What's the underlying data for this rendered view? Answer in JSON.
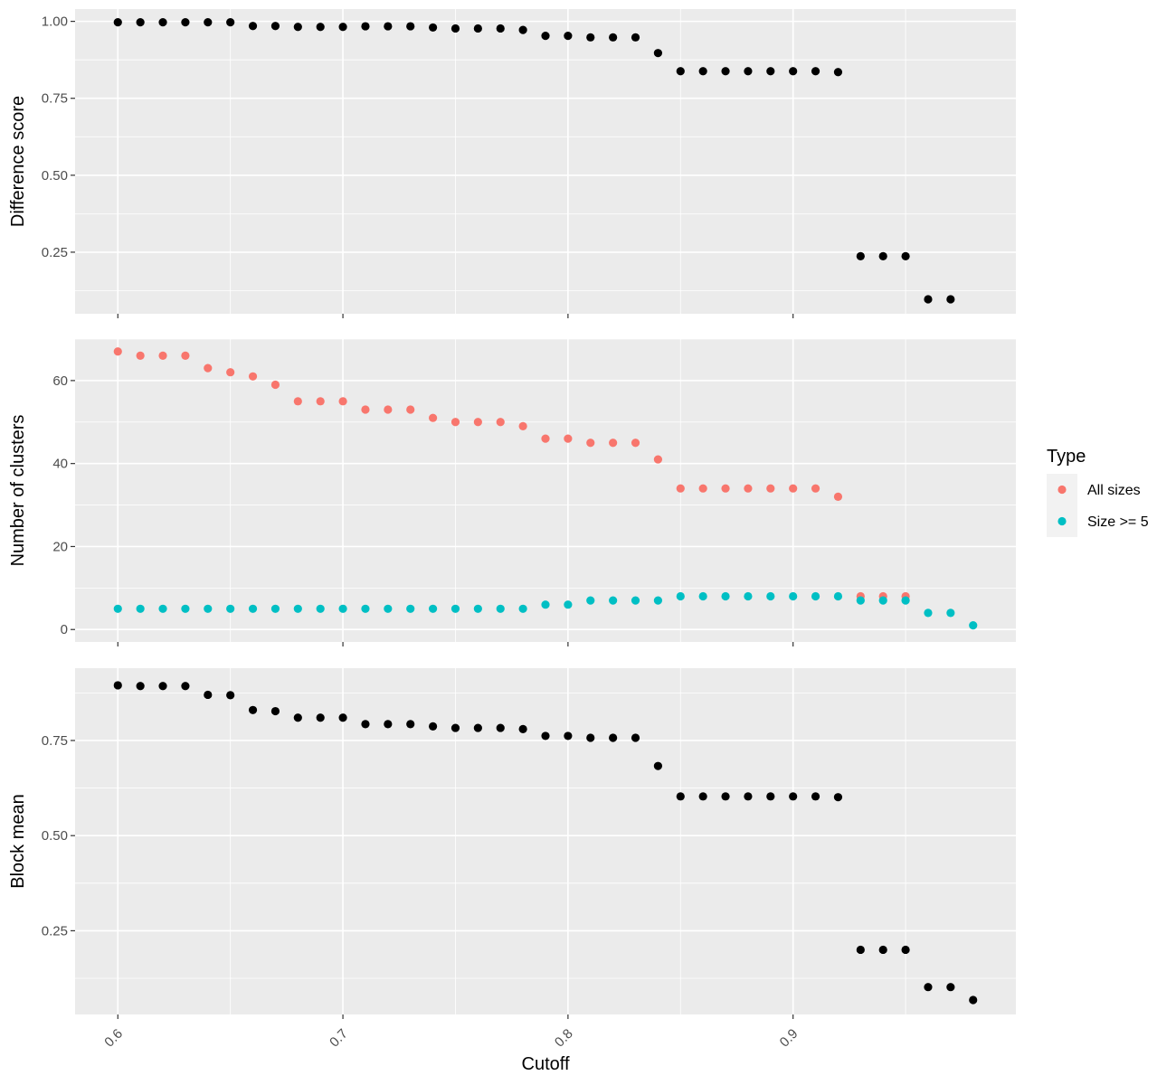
{
  "chart_data": {
    "type": "scatter",
    "xlabel": "Cutoff",
    "x_ticks": [
      0.6,
      0.7,
      0.8,
      0.9
    ],
    "x_tick_labels": [
      "0.6",
      "0.7",
      "0.8",
      "0.9"
    ],
    "xlim": [
      0.581,
      0.999
    ],
    "legend": {
      "title": "Type",
      "placement": "right",
      "entries": [
        {
          "label": "All sizes",
          "color": "#f8766d"
        },
        {
          "label": "Size >= 5",
          "color": "#00bfc4"
        }
      ]
    },
    "panels": [
      {
        "name": "difference-score",
        "ylabel": "Difference score",
        "ylim": [
          0.05,
          1.04
        ],
        "y_ticks": [
          0.25,
          0.5,
          0.75,
          1.0
        ],
        "y_tick_labels": [
          "0.25",
          "0.50",
          "0.75",
          "1.00"
        ],
        "series": [
          {
            "color": "#000000",
            "x": [
              0.6,
              0.61,
              0.62,
              0.63,
              0.64,
              0.65,
              0.66,
              0.67,
              0.68,
              0.69,
              0.7,
              0.71,
              0.72,
              0.73,
              0.74,
              0.75,
              0.76,
              0.77,
              0.78,
              0.79,
              0.8,
              0.81,
              0.82,
              0.83,
              0.84,
              0.85,
              0.86,
              0.87,
              0.88,
              0.89,
              0.9,
              0.91,
              0.92,
              0.93,
              0.94,
              0.95,
              0.96,
              0.97
            ],
            "y": [
              0.997,
              0.997,
              0.997,
              0.997,
              0.997,
              0.997,
              0.985,
              0.985,
              0.982,
              0.982,
              0.982,
              0.984,
              0.984,
              0.984,
              0.98,
              0.977,
              0.977,
              0.977,
              0.972,
              0.953,
              0.953,
              0.948,
              0.948,
              0.948,
              0.897,
              0.838,
              0.838,
              0.838,
              0.838,
              0.838,
              0.838,
              0.838,
              0.835,
              0.237,
              0.237,
              0.237,
              0.097,
              0.097
            ]
          }
        ]
      },
      {
        "name": "number-of-clusters",
        "ylabel": "Number of clusters",
        "ylim": [
          -3,
          70
        ],
        "y_ticks": [
          0,
          20,
          40,
          60
        ],
        "y_tick_labels": [
          "0",
          "20",
          "40",
          "60"
        ],
        "series": [
          {
            "name": "All sizes",
            "color": "#f8766d",
            "x": [
              0.6,
              0.61,
              0.62,
              0.63,
              0.64,
              0.65,
              0.66,
              0.67,
              0.68,
              0.69,
              0.7,
              0.71,
              0.72,
              0.73,
              0.74,
              0.75,
              0.76,
              0.77,
              0.78,
              0.79,
              0.8,
              0.81,
              0.82,
              0.83,
              0.84,
              0.85,
              0.86,
              0.87,
              0.88,
              0.89,
              0.9,
              0.91,
              0.92,
              0.93,
              0.94,
              0.95
            ],
            "y": [
              67,
              66,
              66,
              66,
              63,
              62,
              61,
              59,
              55,
              55,
              55,
              53,
              53,
              53,
              51,
              50,
              50,
              50,
              49,
              46,
              46,
              45,
              45,
              45,
              41,
              34,
              34,
              34,
              34,
              34,
              34,
              34,
              32,
              8,
              8,
              8
            ]
          },
          {
            "name": "Size >= 5",
            "color": "#00bfc4",
            "x": [
              0.6,
              0.61,
              0.62,
              0.63,
              0.64,
              0.65,
              0.66,
              0.67,
              0.68,
              0.69,
              0.7,
              0.71,
              0.72,
              0.73,
              0.74,
              0.75,
              0.76,
              0.77,
              0.78,
              0.79,
              0.8,
              0.81,
              0.82,
              0.83,
              0.84,
              0.85,
              0.86,
              0.87,
              0.88,
              0.89,
              0.9,
              0.91,
              0.92,
              0.93,
              0.94,
              0.95,
              0.96,
              0.97,
              0.98
            ],
            "y": [
              5,
              5,
              5,
              5,
              5,
              5,
              5,
              5,
              5,
              5,
              5,
              5,
              5,
              5,
              5,
              5,
              5,
              5,
              5,
              6,
              6,
              7,
              7,
              7,
              7,
              8,
              8,
              8,
              8,
              8,
              8,
              8,
              8,
              7,
              7,
              7,
              4,
              4,
              1
            ]
          }
        ]
      },
      {
        "name": "block-mean",
        "ylabel": "Block mean",
        "ylim": [
          0.03,
          0.94
        ],
        "y_ticks": [
          0.25,
          0.5,
          0.75
        ],
        "y_tick_labels": [
          "0.25",
          "0.50",
          "0.75"
        ],
        "series": [
          {
            "color": "#000000",
            "x": [
              0.6,
              0.61,
              0.62,
              0.63,
              0.64,
              0.65,
              0.66,
              0.67,
              0.68,
              0.69,
              0.7,
              0.71,
              0.72,
              0.73,
              0.74,
              0.75,
              0.76,
              0.77,
              0.78,
              0.79,
              0.8,
              0.81,
              0.82,
              0.83,
              0.84,
              0.85,
              0.86,
              0.87,
              0.88,
              0.89,
              0.9,
              0.91,
              0.92,
              0.93,
              0.94,
              0.95,
              0.96,
              0.97,
              0.98
            ],
            "y": [
              0.895,
              0.893,
              0.893,
              0.893,
              0.87,
              0.869,
              0.83,
              0.827,
              0.81,
              0.81,
              0.81,
              0.793,
              0.793,
              0.793,
              0.787,
              0.783,
              0.783,
              0.783,
              0.78,
              0.762,
              0.762,
              0.757,
              0.757,
              0.757,
              0.683,
              0.603,
              0.603,
              0.603,
              0.603,
              0.603,
              0.603,
              0.603,
              0.601,
              0.2,
              0.2,
              0.2,
              0.102,
              0.102,
              0.068
            ]
          }
        ]
      }
    ]
  }
}
